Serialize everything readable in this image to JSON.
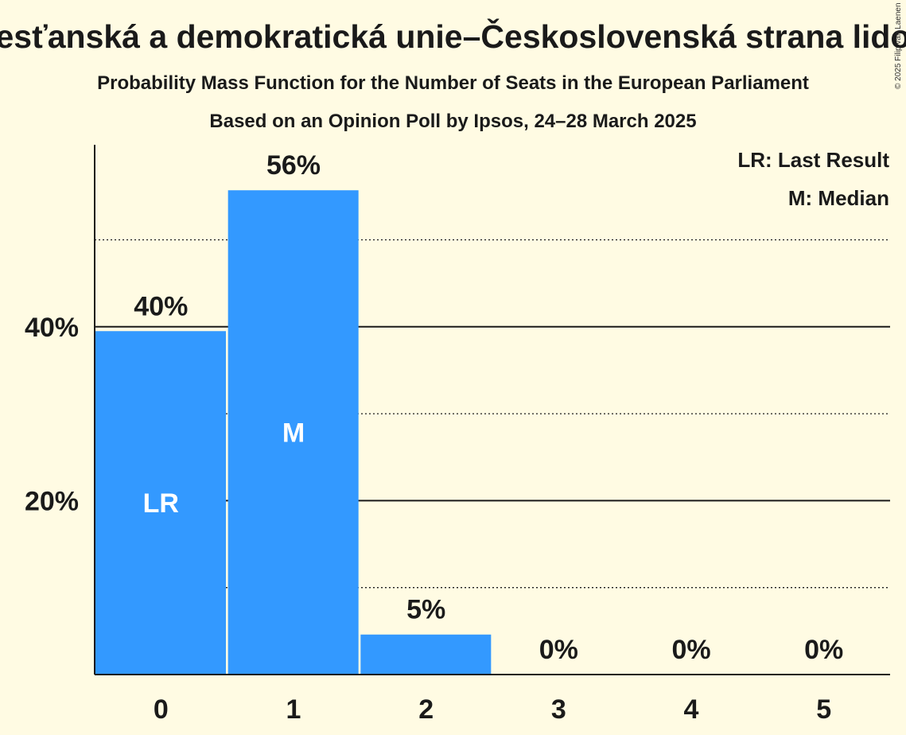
{
  "colors": {
    "background": "#fffbe3",
    "bar": "#3399ff",
    "text": "#1a1a1a",
    "bar_label": "#ffffff"
  },
  "chart_data": {
    "type": "bar",
    "title": "Křesťanská a demokratická unie–Československá strana lidová",
    "subtitle": "Probability Mass Function for the Number of Seats in the European Parliament",
    "subtitle2": "Based on an Opinion Poll by Ipsos, 24–28 March 2025",
    "copyright": "© 2025 Filip van Laenen",
    "xlabel": "",
    "ylabel": "",
    "categories": [
      "0",
      "1",
      "2",
      "3",
      "4",
      "5"
    ],
    "values": [
      39.5,
      55.7,
      4.6,
      0,
      0,
      0
    ],
    "value_labels": [
      "40%",
      "56%",
      "5%",
      "0%",
      "0%",
      "0%"
    ],
    "bar_annotations": [
      {
        "category": "0",
        "label": "LR"
      },
      {
        "category": "1",
        "label": "M"
      }
    ],
    "ylim": [
      0,
      61
    ],
    "yticks": [
      {
        "value": 20,
        "label": "20%"
      },
      {
        "value": 40,
        "label": "40%"
      }
    ],
    "minor_gridlines": [
      10,
      30,
      50
    ],
    "legend": {
      "position": "top-right",
      "entries": [
        "LR: Last Result",
        "M: Median"
      ]
    }
  }
}
